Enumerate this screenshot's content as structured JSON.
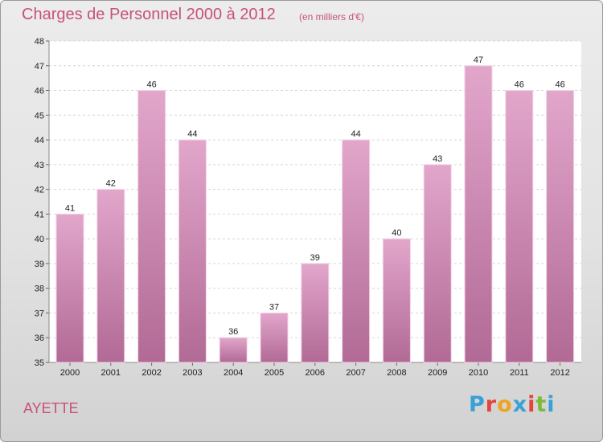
{
  "header": {
    "title": "Charges de Personnel 2000 à 2012",
    "unit": "(en milliers d'€)"
  },
  "footer": {
    "commune": "AYETTE",
    "logo_text": "Proxiti",
    "logo_colors": [
      "#3aa0d8",
      "#e2443b",
      "#f0a31e",
      "#3aa0d8",
      "#e2443b",
      "#7cba3b",
      "#3aa0d8"
    ]
  },
  "colors": {
    "bar_top": "#e2a6cb",
    "bar_bottom": "#b16a95",
    "title": "#c7517b"
  },
  "chart_data": {
    "type": "bar",
    "categories": [
      "2000",
      "2001",
      "2002",
      "2003",
      "2004",
      "2005",
      "2006",
      "2007",
      "2008",
      "2009",
      "2010",
      "2011",
      "2012"
    ],
    "values": [
      41,
      42,
      46,
      44,
      36,
      37,
      39,
      44,
      40,
      43,
      47,
      46,
      46
    ],
    "data_labels": [
      "41",
      "42",
      "46",
      "44",
      "36",
      "37",
      "39",
      "44",
      "40",
      "43",
      "47",
      "46",
      "46"
    ],
    "ylim": [
      35,
      48
    ],
    "yticks": [
      "35",
      "36",
      "37",
      "38",
      "39",
      "40",
      "41",
      "42",
      "43",
      "44",
      "45",
      "46",
      "47",
      "48"
    ],
    "grid": true,
    "xlabel": "",
    "ylabel": ""
  }
}
